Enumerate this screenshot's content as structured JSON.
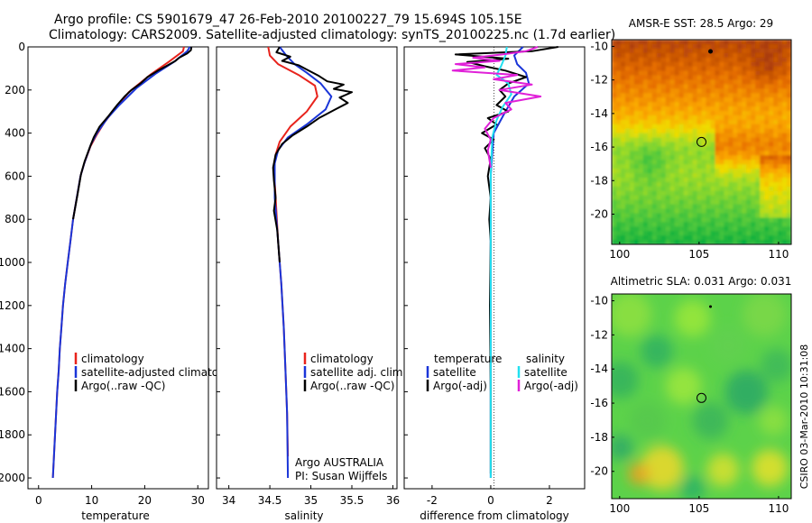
{
  "title_line1": "Argo profile: CS 5901679_47 26-Feb-2010 20100227_79 15.694S 105.15E",
  "title_line2": "Climatology: CARS2009. Satellite-adjusted climatology: synTS_20100225.nc (1.7d earlier)",
  "credit": "CSIRO 03-Mar-2010 10:31:08",
  "colors": {
    "clim": "#e8231c",
    "sat": "#1a35d8",
    "argo": "#000000",
    "cyan": "#22e0f0",
    "magenta": "#e020d8"
  },
  "chart_data": [
    {
      "type": "line",
      "name": "temperature",
      "xlabel": "temperature",
      "ylabel": "",
      "xlim": [
        -2,
        32
      ],
      "ylim": [
        0,
        2050
      ],
      "y_reversed": true,
      "xticks": [
        0,
        10,
        20,
        30
      ],
      "yticks": [
        0,
        200,
        400,
        600,
        800,
        1000,
        1200,
        1400,
        1600,
        1800,
        2000
      ],
      "legend": [
        "climatology",
        "satellite-adjusted climatology",
        "Argo(..raw -QC)"
      ],
      "series": [
        {
          "name": "climatology",
          "color_key": "clim",
          "points": [
            [
              27.4,
              0
            ],
            [
              27.2,
              20
            ],
            [
              24.5,
              70
            ],
            [
              21,
              130
            ],
            [
              17,
              210
            ],
            [
              14.3,
              290
            ],
            [
              12.4,
              350
            ],
            [
              10.9,
              410
            ],
            [
              9.8,
              460
            ],
            [
              8.6,
              540
            ],
            [
              7.9,
              600
            ],
            [
              7.2,
              700
            ],
            [
              6.5,
              800
            ],
            [
              6,
              900
            ],
            [
              5.5,
              1000
            ],
            [
              5,
              1100
            ],
            [
              4.6,
              1200
            ],
            [
              4.3,
              1300
            ],
            [
              4,
              1400
            ],
            [
              3.8,
              1500
            ],
            [
              3.5,
              1600
            ],
            [
              3.3,
              1700
            ],
            [
              3.1,
              1800
            ],
            [
              2.9,
              1900
            ],
            [
              2.7,
              2000
            ]
          ]
        },
        {
          "name": "satellite-adjusted climatology",
          "color_key": "sat",
          "points": [
            [
              28.5,
              0
            ],
            [
              28,
              20
            ],
            [
              25.5,
              70
            ],
            [
              22,
              125
            ],
            [
              18.5,
              190
            ],
            [
              15.2,
              270
            ],
            [
              13,
              330
            ],
            [
              11,
              400
            ],
            [
              9.9,
              450
            ],
            [
              8.6,
              540
            ],
            [
              7.9,
              600
            ],
            [
              7.2,
              700
            ],
            [
              6.5,
              800
            ],
            [
              6,
              900
            ],
            [
              5.5,
              1000
            ],
            [
              5,
              1100
            ],
            [
              4.6,
              1200
            ],
            [
              4.3,
              1300
            ],
            [
              4,
              1400
            ],
            [
              3.8,
              1500
            ],
            [
              3.5,
              1600
            ],
            [
              3.3,
              1700
            ],
            [
              3.1,
              1800
            ],
            [
              2.9,
              1900
            ],
            [
              2.7,
              2000
            ]
          ]
        },
        {
          "name": "Argo(..raw -QC)",
          "color_key": "argo",
          "points": [
            [
              28.8,
              0
            ],
            [
              28.7,
              15
            ],
            [
              28,
              30
            ],
            [
              26.5,
              50
            ],
            [
              25.8,
              65
            ],
            [
              24,
              90
            ],
            [
              22.5,
              110
            ],
            [
              20.5,
              140
            ],
            [
              19.2,
              170
            ],
            [
              17.5,
              200
            ],
            [
              16.2,
              230
            ],
            [
              14.8,
              270
            ],
            [
              13.2,
              320
            ],
            [
              11.5,
              370
            ],
            [
              10.4,
              420
            ],
            [
              9.6,
              470
            ],
            [
              8.7,
              530
            ],
            [
              8,
              590
            ],
            [
              7.3,
              690
            ],
            [
              6.5,
              800
            ]
          ]
        }
      ]
    },
    {
      "type": "line",
      "name": "salinity",
      "xlabel": "salinity",
      "ylabel": "",
      "xlim": [
        33.85,
        36.05
      ],
      "ylim": [
        0,
        2050
      ],
      "y_reversed": true,
      "xticks": [
        34,
        34.5,
        35,
        35.5,
        36
      ],
      "legend": [
        "climatology",
        "satellite adj. clim.",
        "Argo(..raw -QC)"
      ],
      "annotations": [
        "Argo AUSTRALIA",
        "PI: Susan Wijffels"
      ],
      "series": [
        {
          "name": "climatology",
          "color_key": "clim",
          "points": [
            [
              34.48,
              0
            ],
            [
              34.5,
              40
            ],
            [
              34.6,
              80
            ],
            [
              34.85,
              130
            ],
            [
              35.05,
              180
            ],
            [
              35.08,
              230
            ],
            [
              34.95,
              300
            ],
            [
              34.75,
              370
            ],
            [
              34.62,
              440
            ],
            [
              34.57,
              500
            ],
            [
              34.55,
              560
            ],
            [
              34.57,
              700
            ],
            [
              34.6,
              900
            ],
            [
              34.64,
              1100
            ],
            [
              34.67,
              1300
            ],
            [
              34.69,
              1500
            ],
            [
              34.71,
              1700
            ],
            [
              34.72,
              1900
            ]
          ]
        },
        {
          "name": "satellite adj. clim.",
          "color_key": "sat",
          "points": [
            [
              34.62,
              0
            ],
            [
              34.7,
              40
            ],
            [
              34.8,
              80
            ],
            [
              34.95,
              120
            ],
            [
              35.12,
              170
            ],
            [
              35.25,
              230
            ],
            [
              35.18,
              290
            ],
            [
              34.95,
              360
            ],
            [
              34.72,
              420
            ],
            [
              34.6,
              480
            ],
            [
              34.56,
              540
            ],
            [
              34.56,
              700
            ],
            [
              34.6,
              900
            ],
            [
              34.64,
              1100
            ],
            [
              34.67,
              1300
            ],
            [
              34.69,
              1500
            ],
            [
              34.71,
              1700
            ],
            [
              34.72,
              2000
            ]
          ]
        },
        {
          "name": "Argo(..raw -QC)",
          "color_key": "argo",
          "points": [
            [
              34.62,
              0
            ],
            [
              34.58,
              25
            ],
            [
              34.75,
              45
            ],
            [
              34.65,
              65
            ],
            [
              34.85,
              85
            ],
            [
              34.95,
              105
            ],
            [
              35.1,
              135
            ],
            [
              35.2,
              160
            ],
            [
              35.4,
              175
            ],
            [
              35.28,
              195
            ],
            [
              35.5,
              210
            ],
            [
              35.35,
              235
            ],
            [
              35.45,
              260
            ],
            [
              35.3,
              290
            ],
            [
              35.1,
              330
            ],
            [
              34.95,
              370
            ],
            [
              34.78,
              410
            ],
            [
              34.65,
              450
            ],
            [
              34.57,
              500
            ],
            [
              34.54,
              560
            ],
            [
              34.55,
              620
            ],
            [
              34.57,
              700
            ],
            [
              34.55,
              760
            ],
            [
              34.59,
              850
            ],
            [
              34.62,
              1000
            ]
          ]
        }
      ]
    },
    {
      "type": "line",
      "name": "difference",
      "xlabel": "difference from climatology",
      "ylabel": "",
      "xlim": [
        -2.95,
        3.2
      ],
      "ylim": [
        0,
        2050
      ],
      "y_reversed": true,
      "xticks": [
        -2,
        0,
        2
      ],
      "legend": {
        "temperature_header": "temperature",
        "salinity_header": "salinity",
        "entries": [
          "satellite",
          "Argo(-adj)",
          "satellite",
          "Argo(-adj)"
        ]
      },
      "series": [
        {
          "name": "temperature satellite",
          "color_key": "sat",
          "points": [
            [
              1.1,
              0
            ],
            [
              0.8,
              40
            ],
            [
              0.9,
              80
            ],
            [
              1.2,
              120
            ],
            [
              1.3,
              170
            ],
            [
              0.8,
              230
            ],
            [
              0.5,
              300
            ],
            [
              0.1,
              400
            ],
            [
              0,
              600
            ],
            [
              0,
              1000
            ],
            [
              0,
              2000
            ]
          ]
        },
        {
          "name": "temperature Argo(-adj)",
          "color_key": "argo",
          "points": [
            [
              2.3,
              0
            ],
            [
              1.4,
              20
            ],
            [
              -1.2,
              35
            ],
            [
              0.6,
              55
            ],
            [
              -0.8,
              70
            ],
            [
              -0.2,
              90
            ],
            [
              0.5,
              110
            ],
            [
              1.2,
              140
            ],
            [
              0.6,
              170
            ],
            [
              0.3,
              200
            ],
            [
              0.5,
              230
            ],
            [
              0.2,
              270
            ],
            [
              0.6,
              300
            ],
            [
              -0.1,
              330
            ],
            [
              0.2,
              360
            ],
            [
              -0.3,
              400
            ],
            [
              0.1,
              430
            ],
            [
              -0.2,
              470
            ],
            [
              0,
              520
            ],
            [
              -0.1,
              600
            ],
            [
              0,
              700
            ],
            [
              -0.05,
              800
            ],
            [
              0,
              900
            ],
            [
              -0.03,
              1200
            ],
            [
              0,
              1600
            ],
            [
              0,
              1980
            ]
          ]
        },
        {
          "name": "salinity satellite",
          "color_key": "cyan",
          "points": [
            [
              0.55,
              0
            ],
            [
              0.5,
              40
            ],
            [
              0.35,
              90
            ],
            [
              0.2,
              130
            ],
            [
              0.6,
              170
            ],
            [
              0.7,
              220
            ],
            [
              0.4,
              280
            ],
            [
              0.2,
              340
            ],
            [
              0.05,
              420
            ],
            [
              0,
              600
            ],
            [
              0,
              2000
            ]
          ]
        },
        {
          "name": "salinity Argo(-adj)",
          "color_key": "magenta",
          "points": [
            [
              1.6,
              0
            ],
            [
              1.2,
              20
            ],
            [
              0.4,
              35
            ],
            [
              -0.6,
              50
            ],
            [
              0.3,
              65
            ],
            [
              -1.2,
              80
            ],
            [
              -0.2,
              95
            ],
            [
              -1.3,
              110
            ],
            [
              0.9,
              130
            ],
            [
              0.1,
              150
            ],
            [
              1.4,
              175
            ],
            [
              0.3,
              200
            ],
            [
              1.7,
              230
            ],
            [
              0.5,
              260
            ],
            [
              0.7,
              290
            ],
            [
              0.1,
              330
            ],
            [
              -0.2,
              380
            ],
            [
              0,
              430
            ],
            [
              -0.1,
              480
            ],
            [
              0,
              560
            ]
          ]
        }
      ]
    },
    {
      "type": "heatmap",
      "title": "AMSR-E SST: 28.5 Argo: 29",
      "xlim": [
        99.5,
        110.8
      ],
      "ylim": [
        -21.8,
        -9.6
      ],
      "xticks": [
        100,
        105,
        110
      ],
      "yticks": [
        -10,
        -12,
        -14,
        -16,
        -18,
        -20
      ],
      "argo_position": [
        105.15,
        -15.694
      ]
    },
    {
      "type": "heatmap",
      "title": "Altimetric SLA: 0.031 Argo: 0.031",
      "xlim": [
        99.5,
        110.8
      ],
      "ylim": [
        -21.6,
        -9.6
      ],
      "xticks": [
        100,
        105,
        110
      ],
      "yticks": [
        -10,
        -12,
        -14,
        -16,
        -18,
        -20
      ],
      "argo_position": [
        105.15,
        -15.694
      ]
    }
  ]
}
